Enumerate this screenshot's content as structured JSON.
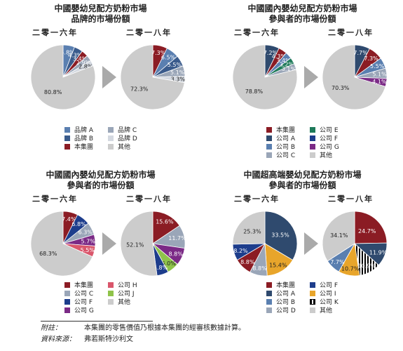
{
  "panels": [
    {
      "title": [
        "中國嬰幼兒配方奶粉市場",
        "品牌的市場份額"
      ],
      "years": [
        "二零一六年",
        "二零一八年"
      ],
      "legend": [
        {
          "label": "品牌 A",
          "color": "#5a7fb0"
        },
        {
          "label": "品牌 C",
          "color": "#9aa6b8"
        },
        {
          "label": "品牌 B",
          "color": "#3a5b8c"
        },
        {
          "label": "品牌 D",
          "color": "#d4d9e1"
        },
        {
          "label": "本集團",
          "color": "#8b1c24"
        },
        {
          "label": "其他",
          "color": "#cccccc"
        }
      ]
    },
    {
      "title": [
        "中國國內嬰幼兒配方奶粉市場",
        "參與者的市場份額"
      ],
      "years": [
        "二零一六年",
        "二零一八年"
      ],
      "legend": [
        {
          "label": "本集團",
          "color": "#8b1c24"
        },
        {
          "label": "公司 E",
          "color": "#1e7a5a"
        },
        {
          "label": "公司 A",
          "color": "#2f4a6e"
        },
        {
          "label": "公司 F",
          "color": "#1d3d8c"
        },
        {
          "label": "公司 B",
          "color": "#5a7fb0"
        },
        {
          "label": "公司 G",
          "color": "#7b2a86"
        },
        {
          "label": "公司 C",
          "color": "#9aa6b8"
        },
        {
          "label": "其他",
          "color": "#cccccc"
        }
      ]
    },
    {
      "title": [
        "中國國內嬰幼兒配方奶粉市場",
        "參與者的市場份額"
      ],
      "years": [
        "二零一六年",
        "二零一八年"
      ],
      "legend": [
        {
          "label": "本集團",
          "color": "#8b1c24"
        },
        {
          "label": "公司 H",
          "color": "#d9566b"
        },
        {
          "label": "公司 C",
          "color": "#9aa6b8"
        },
        {
          "label": "公司 J",
          "color": "#8fc34a"
        },
        {
          "label": "公司 F",
          "color": "#1d3d8c"
        },
        {
          "label": "其他",
          "color": "#cccccc"
        },
        {
          "label": "公司 G",
          "color": "#7b2a86"
        }
      ]
    },
    {
      "title": [
        "中國超高端嬰幼兒配方奶粉市場",
        "參與者的市場份額"
      ],
      "years": [
        "二零一六年",
        "二零一八年"
      ],
      "legend": [
        {
          "label": "本集團",
          "color": "#8b1c24"
        },
        {
          "label": "公司 F",
          "color": "#1d3d8c"
        },
        {
          "label": "公司 A",
          "color": "#2f4a6e"
        },
        {
          "label": "公司 I",
          "color": "#e8a52b"
        },
        {
          "label": "公司 B",
          "color": "#5a7fb0"
        },
        {
          "label": "公司 K",
          "color": "stripe"
        },
        {
          "label": "公司 D",
          "color": "#9aa6b8"
        },
        {
          "label": "其他",
          "color": "#cccccc"
        }
      ]
    }
  ],
  "chart_data": [
    {
      "type": "pie",
      "title": "中國嬰幼兒配方奶粉市場 品牌的市場份額 二零一六年",
      "slices": [
        {
          "name": "品牌 A",
          "value": 5.8,
          "color": "#5a7fb0"
        },
        {
          "name": "品牌 B",
          "value": 4.3,
          "color": "#3a5b8c"
        },
        {
          "name": "本集團",
          "value": 3.4,
          "color": "#8b1c24"
        },
        {
          "name": "品牌 C",
          "value": 2.9,
          "color": "#9aa6b8"
        },
        {
          "name": "品牌 D",
          "value": 2.8,
          "color": "#d4d9e1"
        },
        {
          "name": "其他",
          "value": 80.8,
          "color": "#cccccc"
        }
      ]
    },
    {
      "type": "pie",
      "title": "中國嬰幼兒配方奶粉市場 品牌的市場份額 二零一八年",
      "slices": [
        {
          "name": "本集團",
          "value": 7.3,
          "color": "#8b1c24"
        },
        {
          "name": "品牌 A",
          "value": 6.5,
          "color": "#5a7fb0"
        },
        {
          "name": "品牌 B",
          "value": 5.5,
          "color": "#3a5b8c"
        },
        {
          "name": "品牌 C",
          "value": 5.1,
          "color": "#9aa6b8"
        },
        {
          "name": "品牌 D",
          "value": 3.3,
          "color": "#d4d9e1"
        },
        {
          "name": "其他",
          "value": 72.3,
          "color": "#cccccc"
        }
      ]
    },
    {
      "type": "pie",
      "title": "中國國內嬰幼兒配方奶粉市場 參與者的市場份額 二零一六年",
      "slices": [
        {
          "name": "公司 A",
          "value": 7.2,
          "color": "#2f4a6e"
        },
        {
          "name": "本集團",
          "value": 4.3,
          "color": "#8b1c24"
        },
        {
          "name": "公司 B",
          "value": 3.4,
          "color": "#5a7fb0"
        },
        {
          "name": "公司 E",
          "value": 3.2,
          "color": "#1e7a5a"
        },
        {
          "name": "公司 C",
          "value": 3.1,
          "color": "#9aa6b8"
        },
        {
          "name": "其他",
          "value": 78.8,
          "color": "#cccccc"
        }
      ]
    },
    {
      "type": "pie",
      "title": "中國國內嬰幼兒配方奶粉市場 參與者的市場份額 二零一八年",
      "slices": [
        {
          "name": "公司 A",
          "value": 7.7,
          "color": "#2f4a6e"
        },
        {
          "name": "本集團",
          "value": 7.3,
          "color": "#8b1c24"
        },
        {
          "name": "公司 B",
          "value": 5.5,
          "color": "#5a7fb0"
        },
        {
          "name": "公司 C",
          "value": 5.1,
          "color": "#9aa6b8"
        },
        {
          "name": "公司 G",
          "value": 4.1,
          "color": "#7b2a86"
        },
        {
          "name": "其他",
          "value": 70.3,
          "color": "#cccccc"
        }
      ]
    },
    {
      "type": "pie",
      "title": "中國國內嬰幼兒配方奶粉市場 參與者的市場份額 二零一六年",
      "slices": [
        {
          "name": "本集團",
          "value": 7.4,
          "color": "#8b1c24"
        },
        {
          "name": "公司 F",
          "value": 6.8,
          "color": "#1d3d8c"
        },
        {
          "name": "公司 C",
          "value": 6.3,
          "color": "#9aa6b8"
        },
        {
          "name": "公司 G",
          "value": 5.7,
          "color": "#7b2a86"
        },
        {
          "name": "公司 H",
          "value": 5.5,
          "color": "#d9566b"
        },
        {
          "name": "其他",
          "value": 68.3,
          "color": "#cccccc"
        }
      ]
    },
    {
      "type": "pie",
      "title": "中國國內嬰幼兒配方奶粉市場 參與者的市場份額 二零一八年",
      "slices": [
        {
          "name": "本集團",
          "value": 15.6,
          "color": "#8b1c24"
        },
        {
          "name": "公司 C",
          "value": 11.7,
          "color": "#9aa6b8"
        },
        {
          "name": "公司 G",
          "value": 8.8,
          "color": "#7b2a86"
        },
        {
          "name": "公司 J",
          "value": 6.0,
          "color": "#8fc34a"
        },
        {
          "name": "公司 F",
          "value": 5.8,
          "color": "#1d3d8c"
        },
        {
          "name": "其他",
          "value": 52.1,
          "color": "#cccccc"
        }
      ]
    },
    {
      "type": "pie",
      "title": "中國超高端嬰幼兒配方奶粉市場 參與者的市場份額 二零一六年",
      "slices": [
        {
          "name": "公司 A",
          "value": 33.5,
          "color": "#2f4a6e"
        },
        {
          "name": "公司 I",
          "value": 15.4,
          "color": "#e8a52b"
        },
        {
          "name": "公司 D",
          "value": 8.8,
          "color": "#9aa6b8"
        },
        {
          "name": "本集團",
          "value": 8.8,
          "color": "#8b1c24"
        },
        {
          "name": "公司 F",
          "value": 8.2,
          "color": "#1d3d8c"
        },
        {
          "name": "其他",
          "value": 25.3,
          "color": "#cccccc"
        }
      ]
    },
    {
      "type": "pie",
      "title": "中國超高端嬰幼兒配方奶粉市場 參與者的市場份額 二零一八年",
      "slices": [
        {
          "name": "本集團",
          "value": 24.7,
          "color": "#8b1c24"
        },
        {
          "name": "公司 A",
          "value": 11.9,
          "color": "#2f4a6e"
        },
        {
          "name": "公司 K",
          "value": 10.9,
          "color": "stripe"
        },
        {
          "name": "公司 I",
          "value": 10.7,
          "color": "#e8a52b"
        },
        {
          "name": "公司 B",
          "value": 7.7,
          "color": "#5a7fb0"
        },
        {
          "name": "其他",
          "value": 34.1,
          "color": "#cccccc"
        }
      ]
    }
  ],
  "footer": {
    "note_key": "附註：",
    "note_text": "本集團的零售價值乃根據本集團的經審核數據計算。",
    "source_key": "資料來源：",
    "source_text": "弗若斯特沙利文"
  }
}
